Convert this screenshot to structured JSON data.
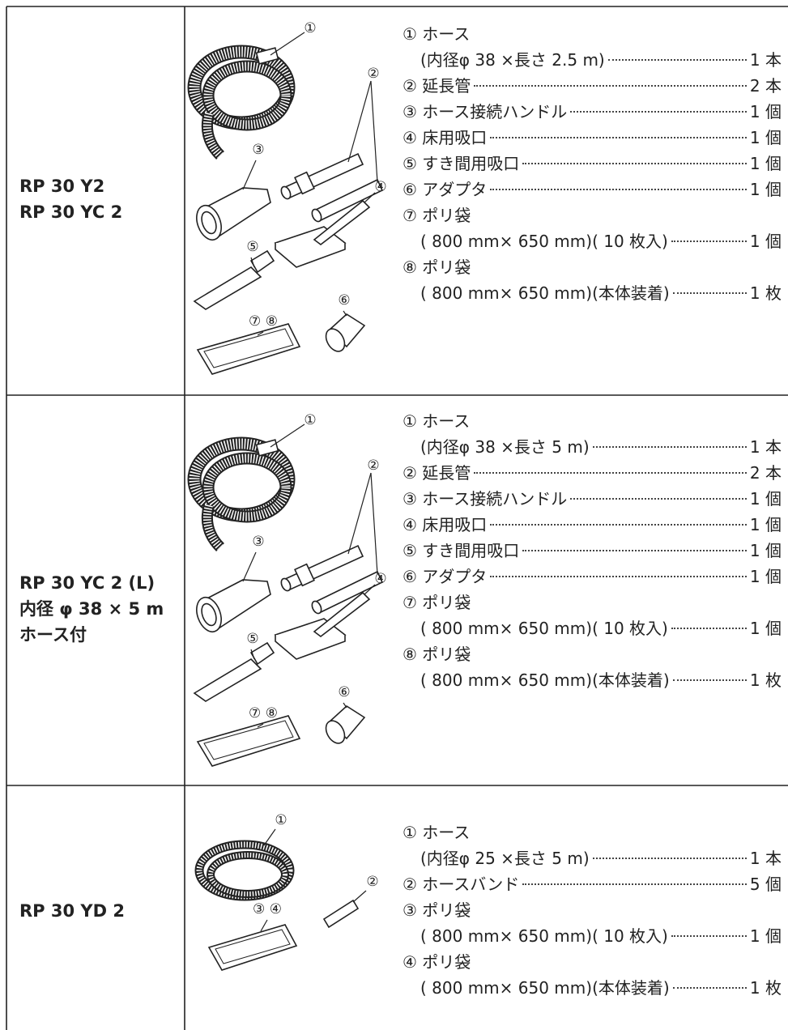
{
  "table": {
    "rows": [
      {
        "model": [
          "RP 30 Y2",
          "RP 30 YC 2"
        ],
        "callouts": [
          "①",
          "②",
          "③",
          "④",
          "⑤",
          "⑥",
          "⑦ ⑧"
        ],
        "items": [
          {
            "text": "① ホース",
            "detail": "(内径φ 38 ×長さ 2.5 m)",
            "qty": "1 本"
          },
          {
            "text": "② 延長管",
            "qty": "2 本"
          },
          {
            "text": "③ ホース接続ハンドル",
            "qty": "1 個"
          },
          {
            "text": "④ 床用吸口",
            "qty": "1 個"
          },
          {
            "text": "⑤ すき間用吸口",
            "qty": "1 個"
          },
          {
            "text": "⑥ アダプタ",
            "qty": "1 個"
          },
          {
            "text": "⑦ ポリ袋",
            "detail": "( 800 mm× 650 mm)( 10 枚入)",
            "qty": "1 個"
          },
          {
            "text": "⑧ ポリ袋",
            "detail": "( 800 mm× 650 mm)(本体装着)",
            "qty": "1 枚"
          }
        ]
      },
      {
        "model": [
          "RP 30 YC 2 (L)",
          "内径 φ 38 × 5 m",
          "ホース付"
        ],
        "callouts": [
          "①",
          "②",
          "③",
          "④",
          "⑤",
          "⑥",
          "⑦ ⑧"
        ],
        "items": [
          {
            "text": "① ホース",
            "detail": "(内径φ 38 ×長さ 5 m)",
            "qty": "1 本"
          },
          {
            "text": "② 延長管",
            "qty": "2 本"
          },
          {
            "text": "③ ホース接続ハンドル",
            "qty": "1 個"
          },
          {
            "text": "④ 床用吸口",
            "qty": "1 個"
          },
          {
            "text": "⑤ すき間用吸口",
            "qty": "1 個"
          },
          {
            "text": "⑥ アダプタ",
            "qty": "1 個"
          },
          {
            "text": "⑦ ポリ袋",
            "detail": "( 800 mm× 650 mm)( 10 枚入)",
            "qty": "1 個"
          },
          {
            "text": "⑧ ポリ袋",
            "detail": "( 800 mm× 650 mm)(本体装着)",
            "qty": "1 枚"
          }
        ]
      },
      {
        "model": [
          "RP 30 YD 2"
        ],
        "callouts": [
          "①",
          "②",
          "③ ④"
        ],
        "items": [
          {
            "text": "① ホース",
            "detail": "(内径φ 25 ×長さ 5 m)",
            "qty": "1 本"
          },
          {
            "text": "② ホースバンド",
            "qty": "5 個"
          },
          {
            "text": "③ ポリ袋",
            "detail": "( 800 mm× 650 mm)( 10 枚入)",
            "qty": "1 個"
          },
          {
            "text": "④ ポリ袋",
            "detail": "( 800 mm× 650 mm)(本体装着)",
            "qty": "1 枚"
          }
        ]
      }
    ]
  }
}
